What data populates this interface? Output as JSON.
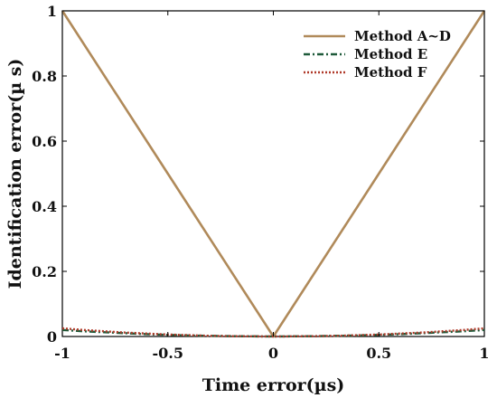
{
  "chart_data": {
    "type": "line",
    "xlabel": "Time error(µs)",
    "ylabel": "Identification error(µ s)",
    "xlim": [
      -1,
      1
    ],
    "ylim": [
      0,
      1
    ],
    "x_ticks": [
      -1,
      -0.5,
      0,
      0.5,
      1
    ],
    "x_tick_labels": [
      "-1",
      "-0.5",
      "0",
      "0.5",
      "1"
    ],
    "y_ticks": [
      0,
      0.2,
      0.4,
      0.6,
      0.8,
      1
    ],
    "y_tick_labels": [
      "0",
      "0.2",
      "0.4",
      "0.6",
      "0.8",
      "1"
    ],
    "grid": false,
    "legend_position": "top-right",
    "series": [
      {
        "name": "Method A~D",
        "color": "#B08A5A",
        "style": "solid",
        "x": [
          -1,
          -0.5,
          0,
          0.5,
          1
        ],
        "y": [
          1,
          0.5,
          0,
          0.5,
          1
        ]
      },
      {
        "name": "Method E",
        "color": "#1F5A3A",
        "style": "dashdot",
        "x": [
          -1,
          -0.9,
          -0.8,
          -0.7,
          -0.6,
          -0.5,
          -0.4,
          -0.3,
          -0.2,
          -0.1,
          0,
          0.1,
          0.2,
          0.3,
          0.4,
          0.5,
          0.6,
          0.7,
          0.8,
          0.9,
          1
        ],
        "y": [
          0.02,
          0.016,
          0.013,
          0.01,
          0.007,
          0.005,
          0.003,
          0.002,
          0.001,
          0.0005,
          0,
          0.0005,
          0.001,
          0.002,
          0.003,
          0.005,
          0.007,
          0.01,
          0.013,
          0.016,
          0.02
        ]
      },
      {
        "name": "Method F",
        "color": "#B03A2A",
        "style": "dotted",
        "x": [
          -1,
          -0.9,
          -0.8,
          -0.7,
          -0.6,
          -0.5,
          -0.4,
          -0.3,
          -0.2,
          -0.1,
          0,
          0.1,
          0.2,
          0.3,
          0.4,
          0.5,
          0.6,
          0.7,
          0.8,
          0.9,
          1
        ],
        "y": [
          0.025,
          0.02,
          0.016,
          0.012,
          0.009,
          0.006,
          0.004,
          0.002,
          0.001,
          0.0005,
          0,
          0.0005,
          0.001,
          0.002,
          0.004,
          0.006,
          0.009,
          0.012,
          0.016,
          0.02,
          0.025
        ]
      }
    ]
  }
}
